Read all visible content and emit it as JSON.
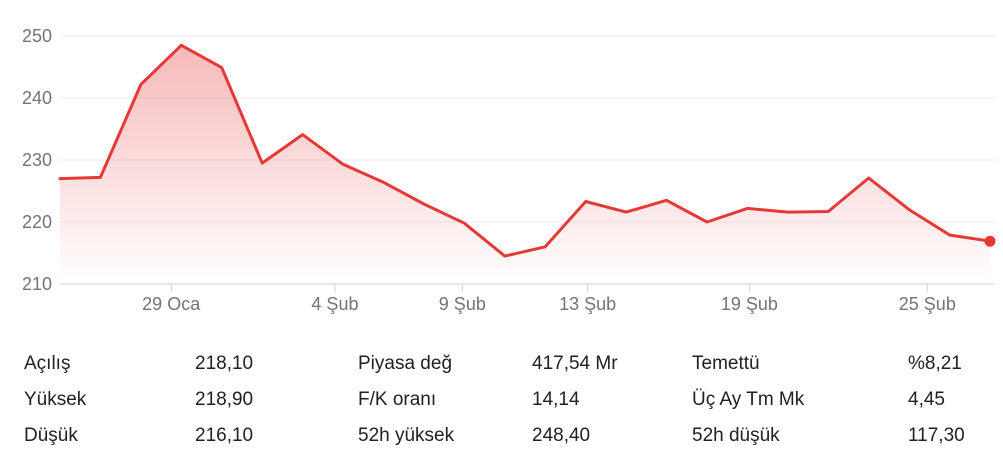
{
  "chart_data": {
    "type": "area",
    "line_color": "#e53935",
    "grid": true,
    "ylim": [
      210,
      250
    ],
    "y_ticks": [
      "250",
      "240",
      "230",
      "220",
      "210"
    ],
    "x_ticks": [
      "29 Oca",
      "4 Şub",
      "9 Şub",
      "13 Şub",
      "19 Şub",
      "25 Şub"
    ],
    "series": [
      {
        "values": [
          227.0,
          227.2,
          242.2,
          248.5,
          244.9,
          229.5,
          234.1,
          229.3,
          226.4,
          222.9,
          219.8,
          214.5,
          216.0,
          223.3,
          221.6,
          223.5,
          220.0,
          222.2,
          221.6,
          221.7,
          227.1,
          222.0,
          217.9,
          216.9
        ]
      }
    ]
  },
  "stats": {
    "rows": [
      {
        "l1": "Açılış",
        "v1": "218,10",
        "l2": "Piyasa değ",
        "v2": "417,54 Mr",
        "l3": "Temettü",
        "v3": "%8,21"
      },
      {
        "l1": "Yüksek",
        "v1": "218,90",
        "l2": "F/K oranı",
        "v2": "14,14",
        "l3": "Üç Ay Tm Mk",
        "v3": "4,45"
      },
      {
        "l1": "Düşük",
        "v1": "216,10",
        "l2": "52h yüksek",
        "v2": "248,40",
        "l3": "52h düşük",
        "v3": "117,30"
      }
    ]
  }
}
